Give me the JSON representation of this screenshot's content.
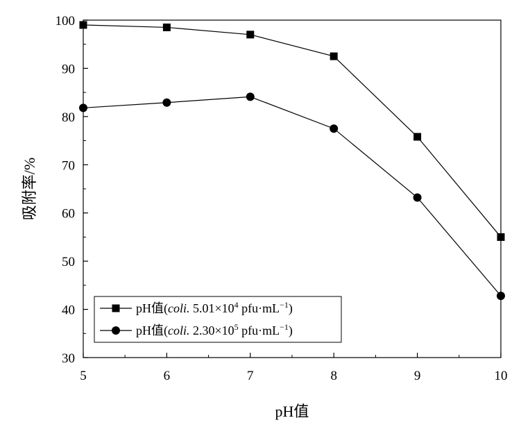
{
  "chart_data": {
    "type": "line",
    "title": "",
    "xlabel": "pH值",
    "ylabel": "吸附率/%",
    "x": [
      5,
      6,
      7,
      8,
      9,
      10
    ],
    "xlim": [
      5,
      10
    ],
    "ylim": [
      30,
      100
    ],
    "xticks": [
      5,
      6,
      7,
      8,
      9,
      10
    ],
    "yticks": [
      30,
      40,
      50,
      60,
      70,
      80,
      90,
      100
    ],
    "grid": false,
    "legend_position": "bottom-left",
    "series": [
      {
        "name": "pH值(coli. 5.01×10⁴ pfu·mL⁻¹)",
        "legend_parts": {
          "prefix": "pH值(",
          "italic": "coli.",
          "mid": " 5.01×10",
          "sup": "4",
          "mid2": " pfu·mL",
          "sup2": "−1",
          "suffix": ")"
        },
        "marker": "square",
        "color": "#000000",
        "values": [
          99.0,
          98.5,
          97.0,
          92.5,
          75.8,
          55.0
        ]
      },
      {
        "name": "pH值(coli. 2.30×10⁵ pfu·mL⁻¹)",
        "legend_parts": {
          "prefix": "pH值(",
          "italic": "coli.",
          "mid": " 2.30×10",
          "sup": "5",
          "mid2": " pfu·mL",
          "sup2": "−1",
          "suffix": ")"
        },
        "marker": "circle",
        "color": "#000000",
        "values": [
          81.8,
          82.9,
          84.1,
          77.5,
          63.2,
          42.8
        ]
      }
    ]
  }
}
